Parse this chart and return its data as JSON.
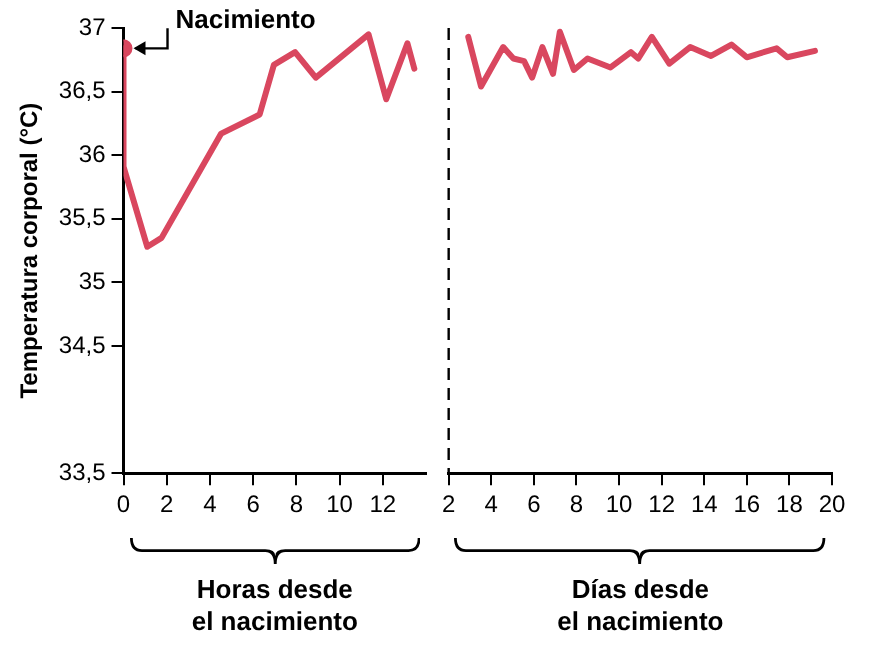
{
  "chart_data": [
    {
      "type": "line",
      "ylabel": "Temperatura corporal (°C)",
      "xlim": [
        0,
        14
      ],
      "xticks": [
        0,
        2,
        4,
        6,
        8,
        10,
        12
      ],
      "ylim": [
        33.5,
        37
      ],
      "yticks": [
        {
          "value": 33.5,
          "label": "33,5"
        },
        {
          "value": 34.5,
          "label": "34,5"
        },
        {
          "value": 35,
          "label": "35"
        },
        {
          "value": 35.5,
          "label": "35,5"
        },
        {
          "value": 36,
          "label": "36"
        },
        {
          "value": 36.5,
          "label": "36,5"
        },
        {
          "value": 37,
          "label": "37"
        }
      ],
      "grid": false,
      "marker": "none",
      "line_style": "solid",
      "series": [
        {
          "color": "#d9475f",
          "x": [
            0,
            0,
            1.1,
            1.76,
            4.52,
            6.3,
            6.96,
            7.94,
            8.9,
            11.34,
            12.16,
            13.14,
            13.46
          ],
          "values": [
            36.84,
            35.91,
            35.28,
            35.35,
            36.17,
            36.32,
            36.71,
            36.81,
            36.61,
            36.95,
            36.44,
            36.88,
            36.68
          ]
        },
        {
          "type": "scatter",
          "color": "#d9475f",
          "marker": "circle",
          "x": [
            0
          ],
          "values": [
            36.84
          ]
        }
      ],
      "annotations": [
        {
          "text": "Nacimiento",
          "x": 0,
          "y": 36.84
        },
        "Horas desde\nel nacimiento"
      ]
    },
    {
      "type": "line",
      "xlim": [
        2,
        20
      ],
      "xticks": [
        2,
        4,
        6,
        8,
        10,
        12,
        14,
        16,
        18,
        20
      ],
      "ylim": [
        33.5,
        37
      ],
      "tick_labels": "x",
      "grid": false,
      "marker": "none",
      "line_style": "solid",
      "series": [
        {
          "color": "#d9475f",
          "x": [
            2.92,
            3.52,
            4.56,
            5.04,
            5.54,
            5.92,
            6.4,
            6.9,
            7.22,
            7.88,
            8.52,
            9.6,
            10.56,
            10.9,
            11.54,
            12.36,
            13.34,
            14.32,
            15.28,
            16,
            17.4,
            17.9,
            19.2
          ],
          "values": [
            36.93,
            36.54,
            36.85,
            36.76,
            36.74,
            36.61,
            36.85,
            36.64,
            36.97,
            36.67,
            36.76,
            36.69,
            36.81,
            36.76,
            36.93,
            36.72,
            36.85,
            36.78,
            36.87,
            36.77,
            36.84,
            36.77,
            36.82
          ]
        }
      ],
      "ref_lines": [
        {
          "axis": "x",
          "value": 2,
          "color": "#000000",
          "line_style": "dashed"
        }
      ],
      "annotations": [
        "Días desde\nel nacimiento"
      ]
    }
  ]
}
